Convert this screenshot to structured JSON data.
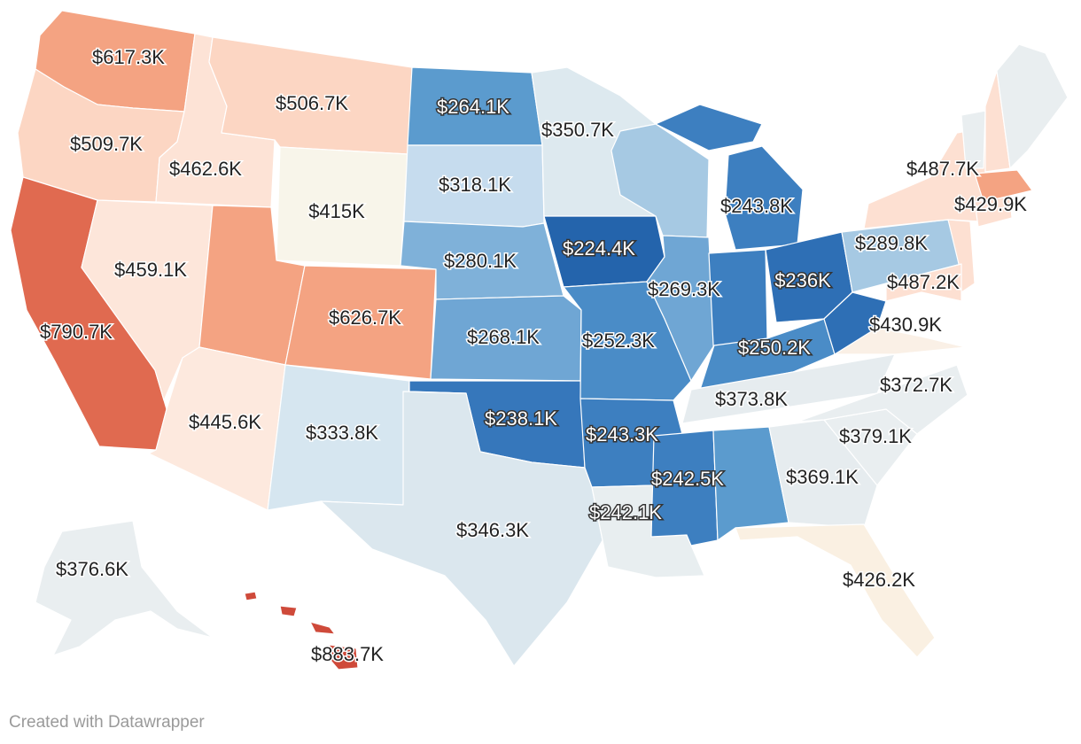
{
  "credit": "Created with Datawrapper",
  "colors": {
    "c_883": "#cf4a3a",
    "c_790": "#e06a50",
    "c_626": "#f4a382",
    "c_617": "#f4a382",
    "c_509": "#fcd6c3",
    "c_487": "#fde0d2",
    "c_462": "#fde3d6",
    "c_445": "#fde9de",
    "c_430": "#faf0e6",
    "c_426": "#faf0e2",
    "c_415": "#f8f5ea",
    "c_379": "#e9eef0",
    "c_373": "#e6ecef",
    "c_369": "#e6ecef",
    "c_350": "#dde9ef",
    "c_346": "#dbe7ee",
    "c_333": "#d6e6f0",
    "c_318": "#c6dcee",
    "c_289": "#a6c9e3",
    "c_280": "#7fb1d9",
    "c_268": "#6fa6d4",
    "c_264": "#5b9bce",
    "c_252": "#4a8cc7",
    "c_243": "#3d7fc0",
    "c_238": "#3677bb",
    "c_236": "#2e6fb5",
    "c_224": "#2464ac"
  },
  "chart_data": {
    "type": "choropleth",
    "regions": [
      {
        "state": "Washington",
        "value_k": 617.3,
        "label": "$617.3K"
      },
      {
        "state": "Oregon",
        "value_k": 509.7,
        "label": "$509.7K"
      },
      {
        "state": "California",
        "value_k": 790.7,
        "label": "$790.7K"
      },
      {
        "state": "Idaho",
        "value_k": 462.6,
        "label": "$462.6K"
      },
      {
        "state": "Nevada",
        "value_k": 459.1,
        "label": "$459.1K"
      },
      {
        "state": "Montana",
        "value_k": 506.7,
        "label": "$506.7K"
      },
      {
        "state": "Wyoming",
        "value_k": 415.0,
        "label": "$415K"
      },
      {
        "state": "Utah",
        "value_k": null,
        "label": ""
      },
      {
        "state": "Arizona",
        "value_k": 445.6,
        "label": "$445.6K"
      },
      {
        "state": "Colorado",
        "value_k": 626.7,
        "label": "$626.7K"
      },
      {
        "state": "New Mexico",
        "value_k": 333.8,
        "label": "$333.8K"
      },
      {
        "state": "North Dakota",
        "value_k": 264.1,
        "label": "$264.1K"
      },
      {
        "state": "South Dakota",
        "value_k": 318.1,
        "label": "$318.1K"
      },
      {
        "state": "Nebraska",
        "value_k": 280.1,
        "label": "$280.1K"
      },
      {
        "state": "Kansas",
        "value_k": 268.1,
        "label": "$268.1K"
      },
      {
        "state": "Oklahoma",
        "value_k": 238.1,
        "label": "$238.1K"
      },
      {
        "state": "Texas",
        "value_k": 346.3,
        "label": "$346.3K"
      },
      {
        "state": "Minnesota",
        "value_k": 350.7,
        "label": "$350.7K"
      },
      {
        "state": "Iowa",
        "value_k": 224.4,
        "label": "$224.4K"
      },
      {
        "state": "Missouri",
        "value_k": 252.3,
        "label": "$252.3K"
      },
      {
        "state": "Arkansas",
        "value_k": 243.3,
        "label": "$243.3K"
      },
      {
        "state": "Louisiana",
        "value_k": 242.1,
        "label": "$242.1K"
      },
      {
        "state": "Wisconsin",
        "value_k": null,
        "label": ""
      },
      {
        "state": "Illinois",
        "value_k": 269.3,
        "label": "$269.3K"
      },
      {
        "state": "Michigan",
        "value_k": 243.8,
        "label": "$243.8K"
      },
      {
        "state": "Indiana",
        "value_k": null,
        "label": ""
      },
      {
        "state": "Ohio",
        "value_k": 236.0,
        "label": "$236K"
      },
      {
        "state": "Kentucky",
        "value_k": 250.2,
        "label": "$250.2K"
      },
      {
        "state": "Tennessee",
        "value_k": 373.8,
        "label": "$373.8K"
      },
      {
        "state": "Mississippi",
        "value_k": 242.5,
        "label": "$242.5K"
      },
      {
        "state": "Alabama",
        "value_k": null,
        "label": ""
      },
      {
        "state": "Georgia",
        "value_k": 369.1,
        "label": "$369.1K"
      },
      {
        "state": "Florida",
        "value_k": 426.2,
        "label": "$426.2K"
      },
      {
        "state": "South Carolina",
        "value_k": 379.1,
        "label": "$379.1K"
      },
      {
        "state": "North Carolina",
        "value_k": 372.7,
        "label": "$372.7K"
      },
      {
        "state": "Virginia",
        "value_k": 430.9,
        "label": "$430.9K"
      },
      {
        "state": "West Virginia",
        "value_k": null,
        "label": ""
      },
      {
        "state": "Pennsylvania",
        "value_k": 289.8,
        "label": "$289.8K"
      },
      {
        "state": "New York",
        "value_k": 487.7,
        "label": "$487.7K"
      },
      {
        "state": "New Jersey",
        "value_k": 487.2,
        "label": "$487.2K"
      },
      {
        "state": "Massachusetts",
        "value_k": 429.9,
        "label": "$429.9K"
      },
      {
        "state": "Maine",
        "value_k": null,
        "label": ""
      },
      {
        "state": "Vermont",
        "value_k": null,
        "label": ""
      },
      {
        "state": "New Hampshire",
        "value_k": null,
        "label": ""
      },
      {
        "state": "Alaska",
        "value_k": 376.6,
        "label": "$376.6K"
      },
      {
        "state": "Hawaii",
        "value_k": 883.7,
        "label": "$883.7K"
      }
    ]
  }
}
